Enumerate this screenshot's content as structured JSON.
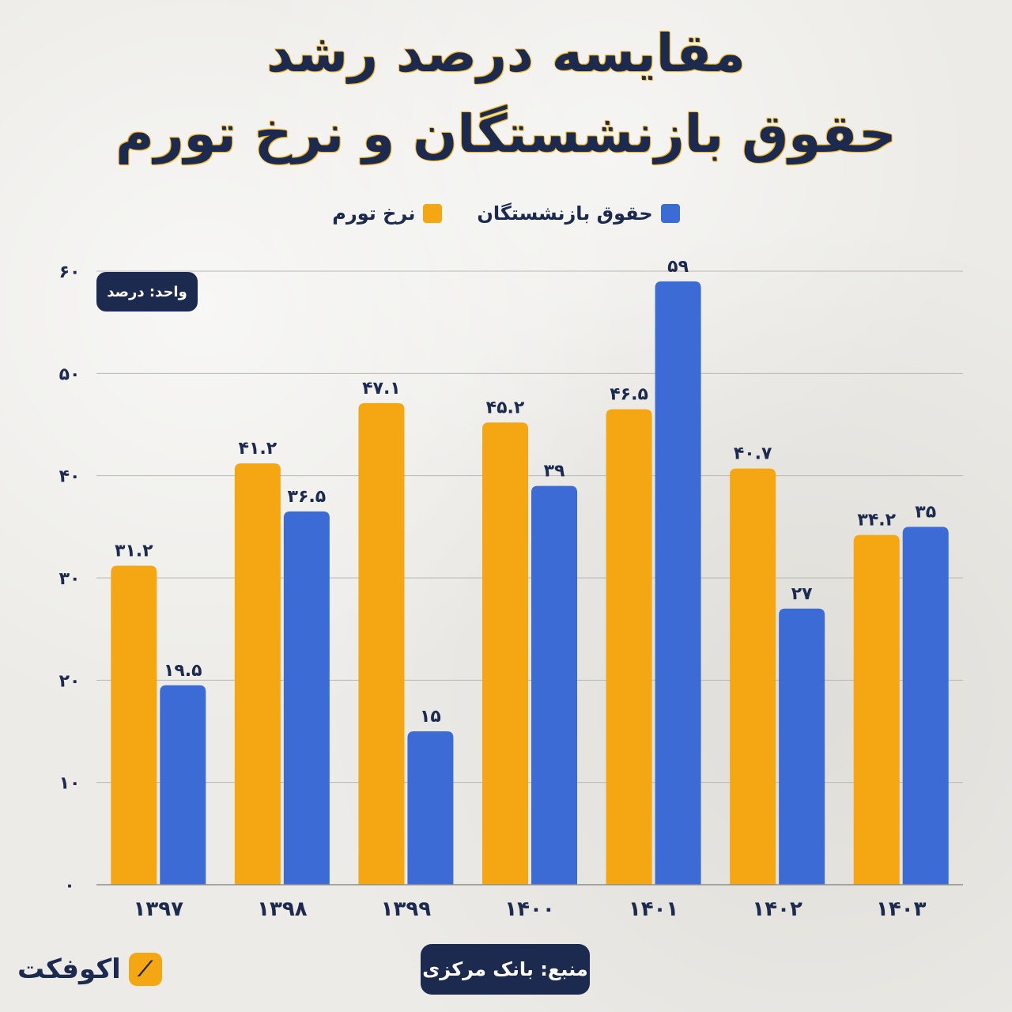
{
  "title_line1": "مقایسه درصد رشد",
  "title_line2": "حقوق بازنشستگان و نرخ تورم",
  "unit_label": "واحد: درصد",
  "source_label": "منبع: بانک مرکزی",
  "logo_text": "اکوفکت",
  "colors": {
    "inflation": "#f5a713",
    "pension": "#3d6bd6",
    "text": "#1d2a50"
  },
  "chart_data": {
    "type": "bar",
    "categories": [
      "۱۳۹۷",
      "۱۳۹۸",
      "۱۳۹۹",
      "۱۴۰۰",
      "۱۴۰۱",
      "۱۴۰۲",
      "۱۴۰۳"
    ],
    "series": [
      {
        "name": "نرخ تورم",
        "color": "#f5a713",
        "values": [
          31.2,
          41.2,
          47.1,
          45.2,
          46.5,
          40.7,
          34.2
        ],
        "labels": [
          "۳۱.۲",
          "۴۱.۲",
          "۴۷.۱",
          "۴۵.۲",
          "۴۶.۵",
          "۴۰.۷",
          "۳۴.۲"
        ]
      },
      {
        "name": "حقوق بازنشستگان",
        "color": "#3d6bd6",
        "values": [
          19.5,
          36.5,
          15,
          39,
          59,
          27,
          35
        ],
        "labels": [
          "۱۹.۵",
          "۳۶.۵",
          "۱۵",
          "۳۹",
          "۵۹",
          "۲۷",
          "۳۵"
        ]
      }
    ],
    "yticks": [
      0,
      10,
      20,
      30,
      40,
      50,
      60
    ],
    "ytick_labels": [
      "۰",
      "۱۰",
      "۲۰",
      "۳۰",
      "۴۰",
      "۵۰",
      "۶۰"
    ],
    "ylim": [
      0,
      60
    ],
    "grid": true,
    "legend": "top-center"
  }
}
